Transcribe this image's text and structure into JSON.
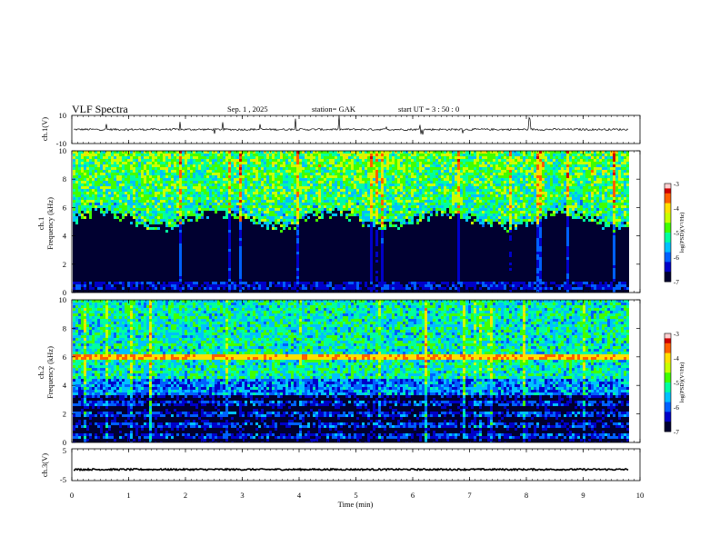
{
  "header": {
    "title": "VLF  Spectra",
    "date": "Sep. 1  , 2025",
    "station": "station= GAK",
    "start": "start  UT  =    3  : 50 : 0"
  },
  "chart_data": [
    {
      "type": "line",
      "panel": "ch1-waveform",
      "ylabel": "ch.1(V)",
      "ylim": [
        -10,
        10
      ],
      "yticks": [
        "10",
        "-10"
      ],
      "baseline": 0,
      "color": "#000000"
    },
    {
      "type": "heatmap",
      "panel": "ch1-spectrogram",
      "ylabel": [
        "ch.1",
        "Frequency  (kHz)"
      ],
      "ylim": [
        0,
        10
      ],
      "yticks": [
        "0",
        "2",
        "4",
        "6",
        "8",
        "10"
      ],
      "description_bands": [
        {
          "f_from": 5.5,
          "f_to": 10,
          "level": "high (-5 to -3.5)"
        },
        {
          "f_from": 0.8,
          "f_to": 5.5,
          "level": "low (below -7)"
        },
        {
          "f_from": 0.2,
          "f_to": 0.8,
          "level": "moderate lines"
        }
      ],
      "colorbar": {
        "label": "log(PSD)(V²/Hz)",
        "ticks": [
          "-3",
          "-4",
          "-5",
          "-6",
          "-7"
        ],
        "range": [
          -7,
          -3
        ]
      }
    },
    {
      "type": "heatmap",
      "panel": "ch2-spectrogram",
      "ylabel": [
        "ch.2",
        "Frequency  (kHz)"
      ],
      "ylim": [
        0,
        10
      ],
      "yticks": [
        "0",
        "2",
        "4",
        "6",
        "8",
        "10"
      ],
      "features": [
        {
          "name": "strong band",
          "f": 6.1
        }
      ],
      "colorbar": {
        "label": "log(PSD)(V²/Hz)",
        "ticks": [
          "-3",
          "-4",
          "-5",
          "-6",
          "-7"
        ],
        "range": [
          -7,
          -3
        ]
      }
    },
    {
      "type": "line",
      "panel": "ch3-waveform",
      "ylabel": "ch.3(V)",
      "ylim": [
        -5,
        5
      ],
      "yticks": [
        "5",
        "-5"
      ],
      "baseline": -1.5,
      "color": "#000000"
    }
  ],
  "xaxis": {
    "label": "Time  (min)",
    "range": [
      0,
      10
    ],
    "ticks": [
      "0",
      "1",
      "2",
      "3",
      "4",
      "5",
      "6",
      "7",
      "8",
      "9",
      "10"
    ],
    "data_end": 9.8
  },
  "colormap": [
    "#000030",
    "#0000c8",
    "#0060ff",
    "#00c0ff",
    "#00ffa0",
    "#40ff00",
    "#c8ff00",
    "#ffe000",
    "#ff6000",
    "#d00000",
    "#ffffff"
  ]
}
